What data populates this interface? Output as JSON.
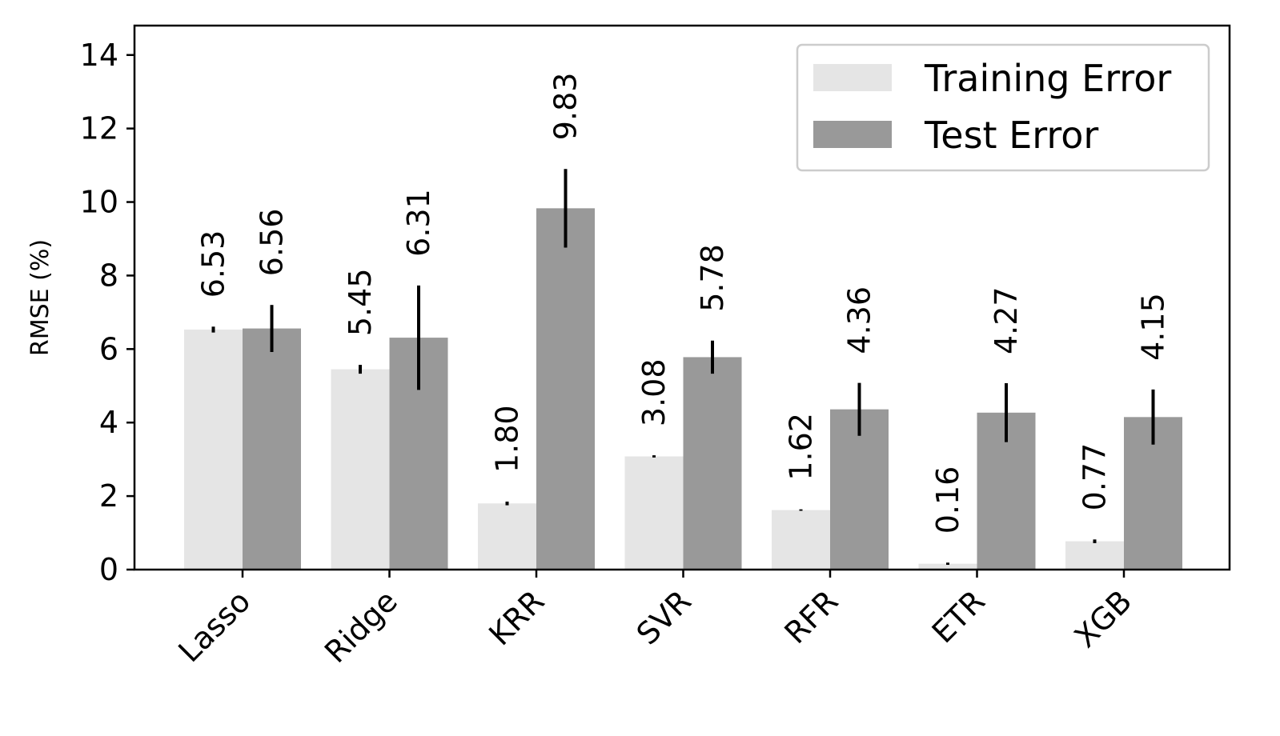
{
  "chart_data": {
    "type": "bar",
    "title": "",
    "xlabel": "",
    "ylabel": "RMSE (%)",
    "ylim": [
      0,
      14.8
    ],
    "yticks": [
      "0",
      "2",
      "4",
      "6",
      "8",
      "10",
      "12",
      "14"
    ],
    "grid": false,
    "legend_position": "top-right",
    "categories": [
      "Lasso",
      "Ridge",
      "KRR",
      "SVR",
      "RFR",
      "ETR",
      "XGB"
    ],
    "series": [
      {
        "name": "Training Error",
        "color": "#e5e5e5",
        "values": [
          6.53,
          5.45,
          1.8,
          3.08,
          1.62,
          0.16,
          0.77
        ],
        "errors": [
          0.08,
          0.12,
          0.05,
          0.03,
          0.02,
          0.03,
          0.05
        ],
        "labels": [
          "6.53",
          "5.45",
          "1.80",
          "3.08",
          "1.62",
          "0.16",
          "0.77"
        ]
      },
      {
        "name": "Test Error",
        "color": "#999999",
        "values": [
          6.56,
          6.31,
          9.83,
          5.78,
          4.36,
          4.27,
          4.15
        ],
        "errors": [
          0.64,
          1.42,
          1.07,
          0.45,
          0.72,
          0.8,
          0.75
        ],
        "labels": [
          "6.56",
          "6.31",
          "9.83",
          "5.78",
          "4.36",
          "4.27",
          "4.15"
        ]
      }
    ]
  }
}
